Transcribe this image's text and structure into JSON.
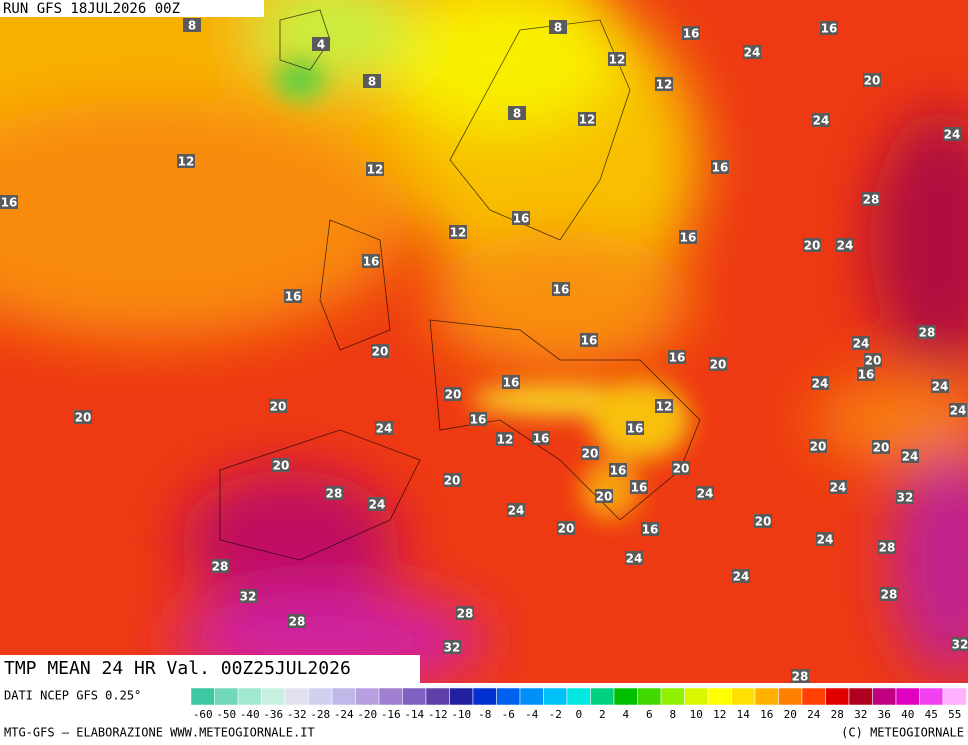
{
  "header": {
    "run": "RUN GFS 18JUL2026 00Z",
    "product": "TMP MEAN 24 HR Val. 00Z25JUL2026"
  },
  "map": {
    "labels": [
      8,
      4,
      8,
      8,
      16,
      16,
      24,
      12,
      12,
      20,
      8,
      12,
      24,
      24,
      12,
      12,
      16,
      16,
      28,
      12,
      16,
      16,
      20,
      24,
      16,
      16,
      16,
      28,
      16,
      24,
      20,
      16,
      20,
      20,
      16,
      24,
      24,
      16,
      20,
      20,
      24,
      20,
      12,
      16,
      24,
      16,
      12,
      16,
      20,
      20,
      20,
      24,
      20,
      16,
      20,
      20,
      28,
      16,
      24,
      20,
      24,
      32,
      24,
      24,
      20,
      16,
      20,
      24,
      28,
      24,
      28,
      24,
      32,
      28,
      28,
      28,
      32,
      32,
      28
    ]
  },
  "legend": {
    "source": "DATI NCEP GFS 0.25°",
    "ticks": [
      -60,
      -50,
      -40,
      -36,
      -32,
      -28,
      -24,
      -20,
      -16,
      -14,
      -12,
      -10,
      -8,
      -6,
      -4,
      -2,
      0,
      2,
      4,
      6,
      8,
      10,
      12,
      14,
      16,
      20,
      24,
      28,
      32,
      36,
      40,
      45,
      55
    ],
    "colors": [
      "#3cc8a0",
      "#70d8b8",
      "#a0e8d0",
      "#c8f0e0",
      "#e0e0f0",
      "#d0d0f0",
      "#c0b8e8",
      "#b8a0e0",
      "#a080d0",
      "#8060c0",
      "#6040a8",
      "#2020a0",
      "#0030d0",
      "#0060f0",
      "#0090f8",
      "#00c0f8",
      "#00e8e0",
      "#00d080",
      "#00c000",
      "#40d800",
      "#90f000",
      "#d8f800",
      "#ffff00",
      "#ffe000",
      "#ffb000",
      "#ff8000",
      "#ff4000",
      "#e00000",
      "#b00020",
      "#c00080",
      "#e000c0",
      "#f040f0",
      "#ffb0ff"
    ]
  },
  "footer": {
    "left": "MTG-GFS — ELABORAZIONE WWW.METEOGIORNALE.IT",
    "right": "(C) METEOGIORNALE"
  }
}
